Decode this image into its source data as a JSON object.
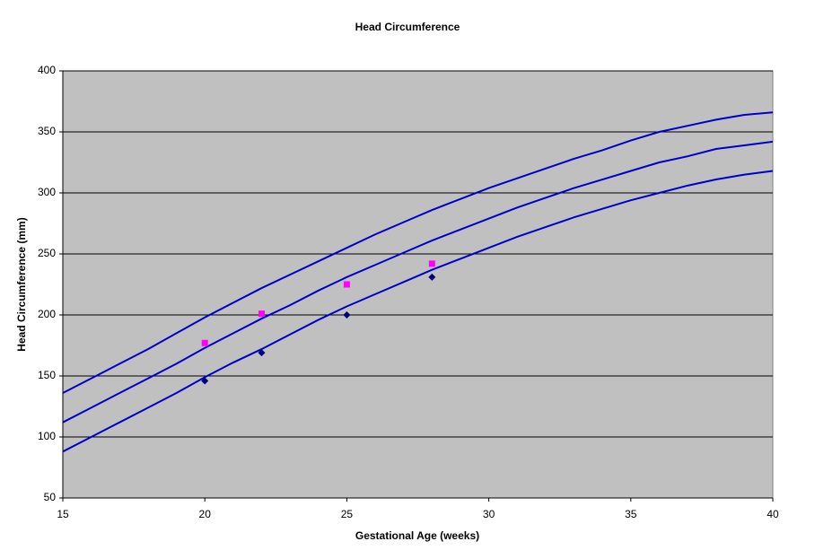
{
  "chart_data": {
    "type": "line",
    "title": "Head Circumference",
    "xlabel": "Gestational Age (weeks)",
    "ylabel": "Head Circumference (mm)",
    "xlim": [
      15,
      40
    ],
    "xticks": [
      15,
      20,
      25,
      30,
      35,
      40
    ],
    "ylim": [
      50,
      400
    ],
    "yticks": [
      50,
      100,
      150,
      200,
      250,
      300,
      350,
      400
    ],
    "grid": true,
    "x": [
      15,
      16,
      17,
      18,
      19,
      20,
      21,
      22,
      23,
      24,
      25,
      26,
      27,
      28,
      29,
      30,
      31,
      32,
      33,
      34,
      35,
      36,
      37,
      38,
      39,
      40
    ],
    "series": [
      {
        "color": "#0000cc",
        "values": [
          136,
          148,
          160,
          172,
          185,
          198,
          210,
          222,
          233,
          244,
          255,
          266,
          276,
          286,
          295,
          304,
          312,
          320,
          328,
          335,
          343,
          350,
          355,
          360,
          364,
          366
        ]
      },
      {
        "color": "#0000cc",
        "values": [
          112,
          124,
          136,
          148,
          160,
          173,
          185,
          197,
          208,
          220,
          231,
          241,
          251,
          261,
          270,
          279,
          288,
          296,
          304,
          311,
          318,
          325,
          330,
          336,
          339,
          342
        ]
      },
      {
        "color": "#0000cc",
        "values": [
          88,
          100,
          112,
          124,
          136,
          149,
          161,
          172,
          184,
          196,
          207,
          217,
          227,
          237,
          246,
          255,
          264,
          272,
          280,
          287,
          294,
          300,
          306,
          311,
          315,
          318
        ]
      },
      {
        "color": "#000080",
        "marker": "diamond",
        "x": [
          20,
          22,
          25,
          28
        ],
        "values": [
          146,
          169,
          200,
          231
        ]
      },
      {
        "color": "#ff00ff",
        "marker": "square",
        "x": [
          20,
          22,
          25,
          28
        ],
        "values": [
          177,
          201,
          225,
          242
        ]
      }
    ]
  }
}
